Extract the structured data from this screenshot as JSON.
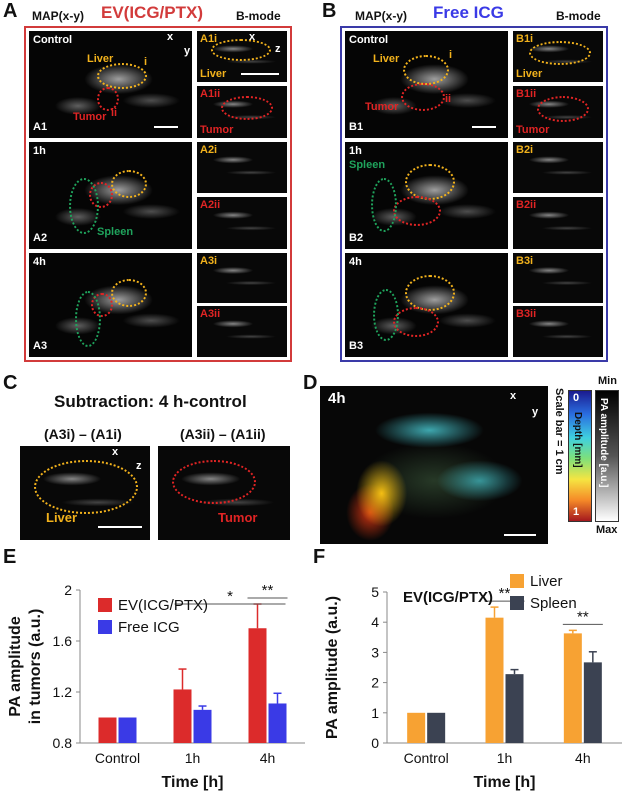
{
  "panels": {
    "A": {
      "letter": "A",
      "map_label": "MAP(x-y)",
      "title": "EV(ICG/PTX)",
      "bmode_label": "B-mode",
      "rows": [
        {
          "time": "Control",
          "id": "A1",
          "b_top": "A1i",
          "b_bot": "A1ii"
        },
        {
          "time": "1h",
          "id": "A2",
          "b_top": "A2i",
          "b_bot": "A2ii"
        },
        {
          "time": "4h",
          "id": "A3",
          "b_top": "A3i",
          "b_bot": "A3ii"
        }
      ],
      "liver": "Liver",
      "tumor": "Tumor",
      "spleen": "Spleen",
      "marker_i": "i",
      "marker_ii": "ii",
      "axis_x": "x",
      "axis_y": "y",
      "axis_z": "z"
    },
    "B": {
      "letter": "B",
      "map_label": "MAP(x-y)",
      "title": "Free ICG",
      "bmode_label": "B-mode",
      "rows": [
        {
          "time": "Control",
          "id": "B1",
          "b_top": "B1i",
          "b_bot": "B1ii"
        },
        {
          "time": "1h",
          "id": "B2",
          "b_top": "B2i",
          "b_bot": "B2ii"
        },
        {
          "time": "4h",
          "id": "B3",
          "b_top": "B3i",
          "b_bot": "B3ii"
        }
      ],
      "liver": "Liver",
      "tumor": "Tumor",
      "spleen": "Spleen",
      "marker_i": "i",
      "marker_ii": "ii"
    },
    "C": {
      "letter": "C",
      "title": "Subtraction: 4 h-control",
      "left_label": "(A3i) – (A1i)",
      "right_label": "(A3ii) – (A1ii)",
      "liver": "Liver",
      "tumor": "Tumor",
      "axis_x": "x",
      "axis_z": "z"
    },
    "D": {
      "letter": "D",
      "time": "4h",
      "scale_note": "Scale bar = 1 cm",
      "depth_label": "Depth [mm]",
      "depth_top": "0",
      "depth_bot": "1",
      "amp_label": "PA amplitude [a.u.]",
      "min": "Min",
      "max": "Max",
      "axis_x": "x",
      "axis_y": "y"
    },
    "E": {
      "letter": "E"
    },
    "F": {
      "letter": "F"
    }
  },
  "colors": {
    "ev": "#dc2b2b",
    "free": "#3a3ae6",
    "liver": "#f7a233",
    "spleen": "#3b4252",
    "frame_a": "#d23b3b",
    "frame_b": "#3a3aa8"
  },
  "chart_data": [
    {
      "id": "E",
      "type": "bar",
      "categories": [
        "Control",
        "1h",
        "4h"
      ],
      "xlabel": "Time [h]",
      "ylabel": "PA amplitude in tumors (a.u.)",
      "ylim": [
        0.8,
        2.0
      ],
      "yticks": [
        "0.8",
        "1.2",
        "1.6",
        "2"
      ],
      "series": [
        {
          "name": "EV(ICG/PTX)",
          "values": [
            1.0,
            1.22,
            1.7
          ],
          "errors": [
            0.0,
            0.16,
            0.19
          ]
        },
        {
          "name": "Free ICG",
          "values": [
            1.0,
            1.06,
            1.11
          ],
          "errors": [
            0.0,
            0.03,
            0.08
          ]
        }
      ],
      "legend": "top-left",
      "significance": [
        {
          "label": "*",
          "from": "1h",
          "to": "4h"
        },
        {
          "label": "**",
          "at": "4h"
        }
      ]
    },
    {
      "id": "F",
      "type": "bar",
      "title": "EV(ICG/PTX)",
      "categories": [
        "Control",
        "1h",
        "4h"
      ],
      "xlabel": "Time [h]",
      "ylabel": "PA amplitude (a.u.)",
      "ylim": [
        0,
        5
      ],
      "yticks": [
        "0",
        "1",
        "2",
        "3",
        "4",
        "5"
      ],
      "series": [
        {
          "name": "Liver",
          "values": [
            1.0,
            4.15,
            3.63
          ],
          "errors": [
            0.0,
            0.35,
            0.1
          ]
        },
        {
          "name": "Spleen",
          "values": [
            1.0,
            2.28,
            2.67
          ],
          "errors": [
            0.0,
            0.15,
            0.35
          ]
        }
      ],
      "legend": "top-right",
      "significance": [
        {
          "label": "**",
          "at": "1h"
        },
        {
          "label": "**",
          "at": "4h"
        }
      ]
    }
  ]
}
